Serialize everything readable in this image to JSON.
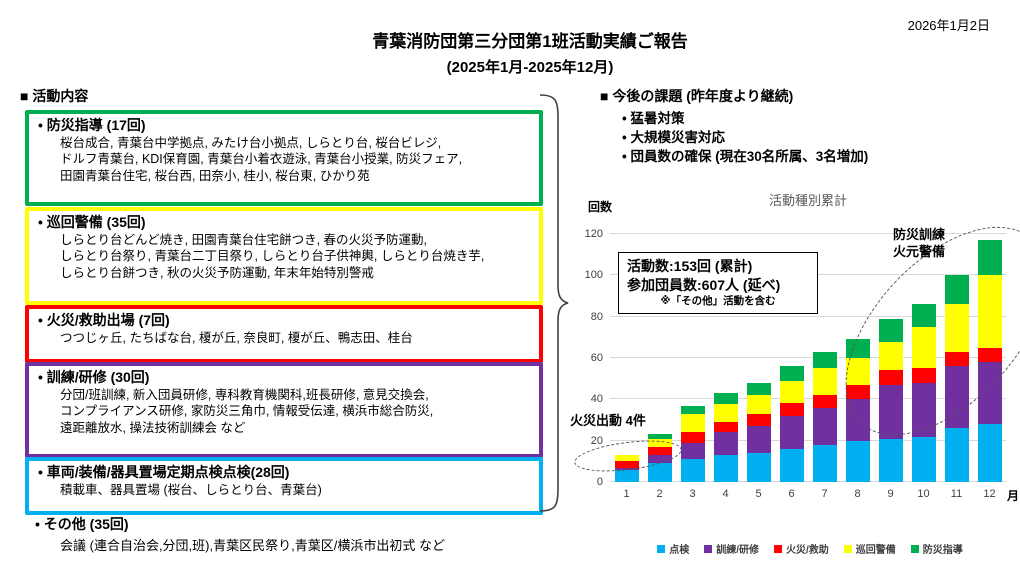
{
  "page": {
    "date": "2026年1月2日",
    "title_line1": "青葉消防団第三分団第1班活動実績ご報告",
    "title_line2": "(2025年1月-2025年12月)"
  },
  "activities": {
    "heading": "■ 活動内容",
    "boxes": [
      {
        "label": "防災指導 (17回)",
        "color": "#00B050",
        "detail": "桜台成合, 青葉台中学拠点, みたけ台小拠点, しらとり台, 桜台ビレジ,\nドルフ青葉台, KDI保育園, 青葉台小着衣遊泳, 青葉台小授業, 防災フェア,\n田園青葉台住宅, 桜台西, 田奈小, 桂小, 桜台東, ひかり苑"
      },
      {
        "label": "巡回警備 (35回)",
        "color": "#FFFF00",
        "detail": "しらとり台どんど焼き, 田園青葉台住宅餅つき, 春の火災予防運動,\nしらとり台祭り, 青葉台二丁目祭り, しらとり台子供神輿, しらとり台焼き芋,\nしらとり台餅つき, 秋の火災予防運動, 年末年始特別警戒"
      },
      {
        "label": "火災/救助出場 (7回)",
        "color": "#FF0000",
        "detail": "つつじヶ丘, たちばな台, 榎が丘, 奈良町, 榎が丘、鴨志田、桂台"
      },
      {
        "label": "訓練/研修 (30回)",
        "color": "#7030A0",
        "detail": "分団/班訓練, 新入団員研修, 専科教育機関科,班長研修, 意見交換会,\nコンプライアンス研修, 家防災三角巾, 情報受伝達, 横浜市総合防災,\n遠距離放水, 操法技術訓練会 など"
      },
      {
        "label": "車両/装備/器具置場定期点検点検(28回)",
        "color": "#00B0F0",
        "detail": "積載車、器具置場 (桜台、しらとり台、青葉台)"
      }
    ],
    "other": {
      "label": "その他 (35回)",
      "detail": "会議 (連合自治会,分団,班),青葉区民祭り,青葉区/横浜市出初式 など"
    }
  },
  "issues": {
    "heading": "■ 今後の課題 (昨年度より継続)",
    "items": [
      "猛暑対策",
      "大規模災害対応",
      "団員数の確保 (現在30名所属、3名増加)"
    ]
  },
  "chart_data": {
    "type": "bar",
    "stacked": true,
    "cumulative": true,
    "title": "活動種別累計",
    "ylabel": "回数",
    "xlabel": "月",
    "ylim": [
      0,
      120
    ],
    "ytick_step": 20,
    "grid": true,
    "legend_position": "bottom",
    "categories": [
      "1",
      "2",
      "3",
      "4",
      "5",
      "6",
      "7",
      "8",
      "9",
      "10",
      "11",
      "12"
    ],
    "series": [
      {
        "name": "点検",
        "color": "#00B0F0",
        "values": [
          6,
          9,
          11,
          13,
          14,
          16,
          18,
          20,
          21,
          22,
          26,
          28
        ]
      },
      {
        "name": "訓練/研修",
        "color": "#7030A0",
        "values": [
          1,
          4,
          8,
          11,
          13,
          16,
          18,
          20,
          26,
          26,
          30,
          30
        ]
      },
      {
        "name": "火災/救助",
        "color": "#FF0000",
        "values": [
          3,
          4,
          5,
          5,
          6,
          6,
          6,
          7,
          7,
          7,
          7,
          7
        ]
      },
      {
        "name": "巡回警備",
        "color": "#FFFF00",
        "values": [
          3,
          4,
          9,
          9,
          9,
          11,
          13,
          13,
          14,
          20,
          23,
          35
        ]
      },
      {
        "name": "防災指導",
        "color": "#00B050",
        "values": [
          0,
          2,
          4,
          5,
          6,
          7,
          8,
          9,
          11,
          11,
          14,
          17
        ]
      }
    ],
    "monthly_totals": [
      13,
      23,
      37,
      43,
      48,
      56,
      63,
      69,
      79,
      86,
      100,
      117
    ],
    "annotations": {
      "stats_line1": "活動数:153回 (累計)",
      "stats_line2": "参加団員数:607人 (延べ)",
      "stats_note": "※「その他」活動を含む",
      "callout_top": "防災訓練\n火元警備",
      "callout_left": "火災出動 4件"
    }
  }
}
